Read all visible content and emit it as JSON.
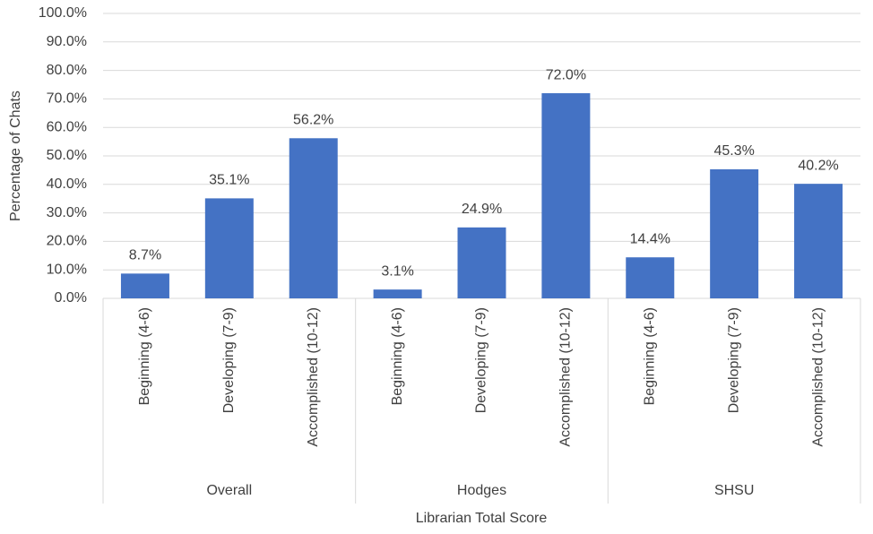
{
  "chart_data": {
    "type": "bar",
    "categories": [
      "Beginning (4-6)",
      "Developing (7-9)",
      "Accomplished (10-12)",
      "Beginning (4-6)",
      "Developing (7-9)",
      "Accomplished (10-12)",
      "Beginning (4-6)",
      "Developing (7-9)",
      "Accomplished (10-12)"
    ],
    "groups": [
      "Overall",
      "Hodges",
      "SHSU"
    ],
    "values": [
      8.7,
      35.1,
      56.2,
      3.1,
      24.9,
      72.0,
      14.4,
      45.3,
      40.2
    ],
    "value_labels": [
      "8.7%",
      "35.1%",
      "56.2%",
      "3.1%",
      "24.9%",
      "72.0%",
      "14.4%",
      "45.3%",
      "40.2%"
    ],
    "color": "#4472c4",
    "xlabel": "Librarian Total Score",
    "ylabel": "Percentage of Chats",
    "ylim": [
      0,
      100
    ],
    "yticks": [
      {
        "value": 0,
        "label": "0.0%"
      },
      {
        "value": 10,
        "label": "10.0%"
      },
      {
        "value": 20,
        "label": "20.0%"
      },
      {
        "value": 30,
        "label": "30.0%"
      },
      {
        "value": 40,
        "label": "40.0%"
      },
      {
        "value": 50,
        "label": "50.0%"
      },
      {
        "value": 60,
        "label": "60.0%"
      },
      {
        "value": 70,
        "label": "70.0%"
      },
      {
        "value": 80,
        "label": "80.0%"
      },
      {
        "value": 90,
        "label": "90.0%"
      },
      {
        "value": 100,
        "label": "100.0%"
      }
    ],
    "grid": true
  }
}
